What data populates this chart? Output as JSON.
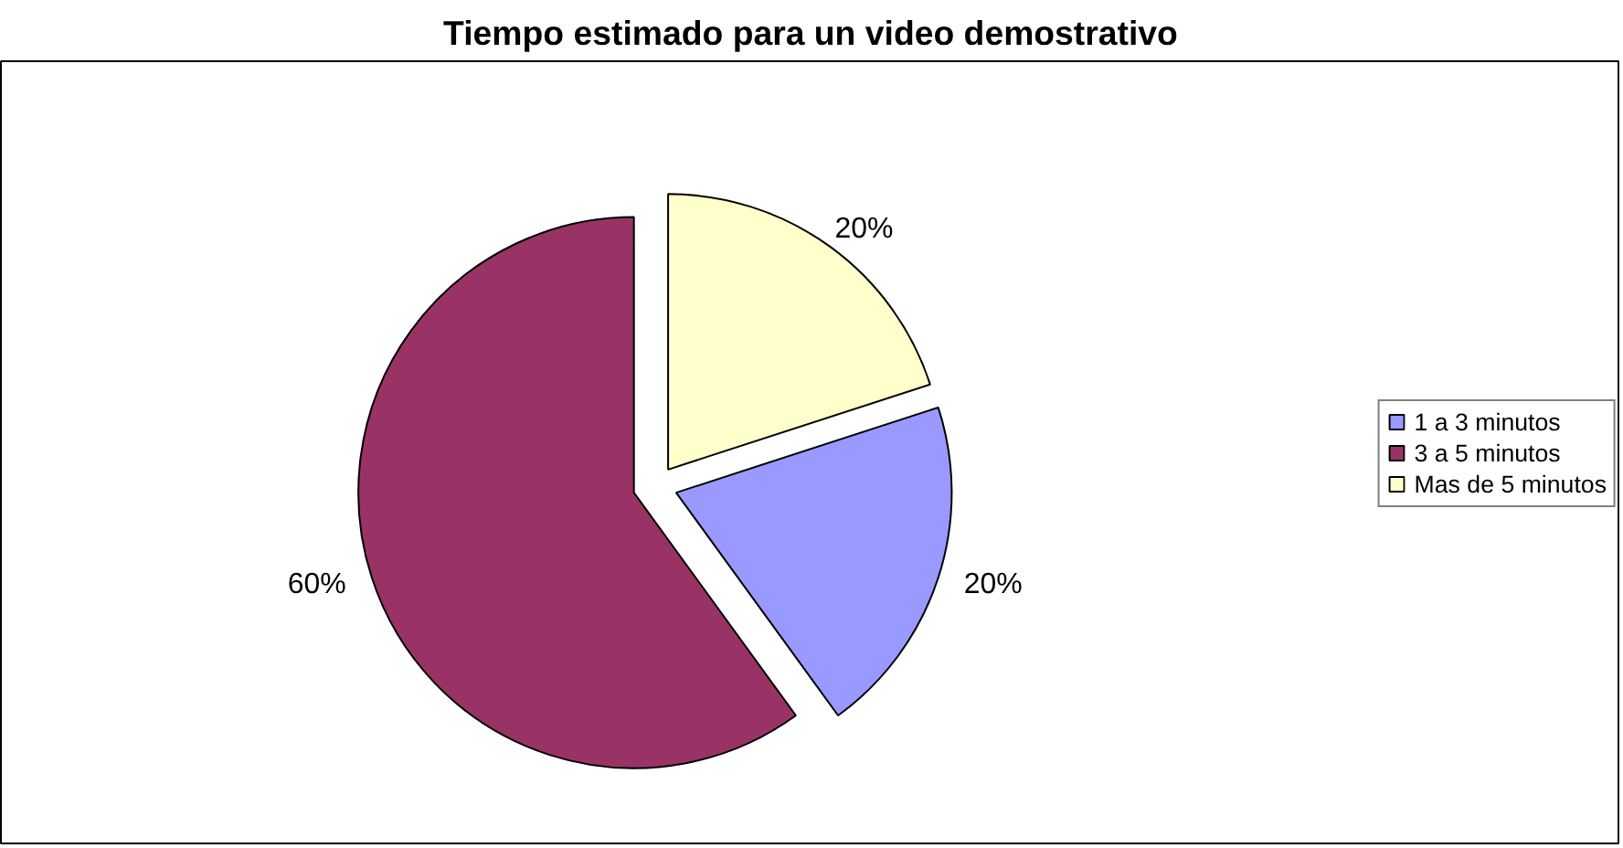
{
  "chart_data": {
    "type": "pie",
    "title": "Tiempo estimado para un video demostrativo",
    "categories": [
      "1 a 3 minutos",
      "3 a 5 minutos",
      "Mas de 5 minutos"
    ],
    "values": [
      20,
      60,
      20
    ],
    "colors": [
      "#9999ff",
      "#993366",
      "#ffffcc"
    ],
    "value_labels": [
      "20%",
      "60%",
      "20%"
    ],
    "legend": "right"
  }
}
